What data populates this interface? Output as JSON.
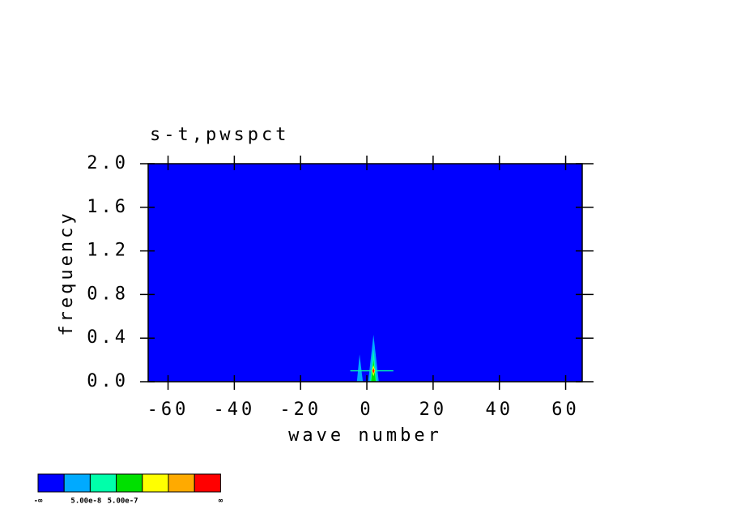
{
  "chart_data": {
    "type": "contour",
    "title": "s-t,pwspct",
    "x_label": "wave number",
    "y_label": "frequency",
    "xlim": [
      -66,
      65
    ],
    "ylim": [
      0,
      2
    ],
    "xticks": [
      -60,
      -40,
      -20,
      0,
      20,
      40,
      60
    ],
    "yticks": [
      {
        "value": 0,
        "label": "0.0"
      },
      0.4,
      0.8,
      1.2,
      1.6,
      {
        "value": 2,
        "label": "2.0"
      }
    ],
    "colors": [
      "#0000ff",
      "#00aaff",
      "#00ffaa",
      "#00e000",
      "#ffff00",
      "#ffaa00",
      "#ff0000"
    ],
    "colorbar_labels": [
      "-∞",
      "5.00e-8",
      "5.00e-7",
      "∞"
    ],
    "contours": [
      {
        "level": 1,
        "x": [
          -3,
          -2.2,
          -1.2
        ],
        "y": [
          0,
          0.25,
          0
        ]
      },
      {
        "level": 1,
        "x": [
          0.4,
          2,
          3.6
        ],
        "y": [
          0,
          0.43,
          0
        ]
      },
      {
        "level": 2,
        "x": [
          -5,
          8,
          8,
          -5
        ],
        "y": [
          0.105,
          0.105,
          0.095,
          0.095
        ]
      },
      {
        "level": 2,
        "x": [
          1,
          2,
          3
        ],
        "y": [
          0,
          0.3,
          0
        ]
      },
      {
        "level": 3,
        "x": [
          1.3,
          2,
          2.7
        ],
        "y": [
          0,
          0.2,
          0
        ]
      },
      {
        "level": 4,
        "x": [
          1.5,
          2,
          2.5,
          2
        ],
        "y": [
          0.1,
          0.15,
          0.1,
          0.05
        ]
      },
      {
        "level": 6,
        "x": [
          1.7,
          2,
          2.3,
          2
        ],
        "y": [
          0.1,
          0.125,
          0.1,
          0.075
        ]
      }
    ]
  }
}
